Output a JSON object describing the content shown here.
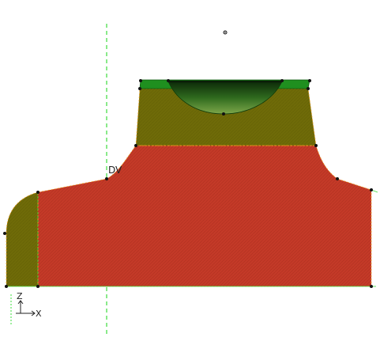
{
  "viewport": {
    "background": "#ffffff"
  },
  "colors": {
    "red_region": "#c43a28",
    "olive_region": "#6f6b08",
    "green_top": "#1f8f1f",
    "cup_dark": "#1e4a12",
    "edge_dashed": "#f0a020",
    "guide_line": "#3ddc3d",
    "vertex": "#111111"
  },
  "labels": {
    "datum_label": "DV",
    "triad_z": "Z",
    "triad_x": "X"
  },
  "icons": {
    "triad": "axis-triad-icon",
    "reference_point": "reference-point-icon"
  }
}
